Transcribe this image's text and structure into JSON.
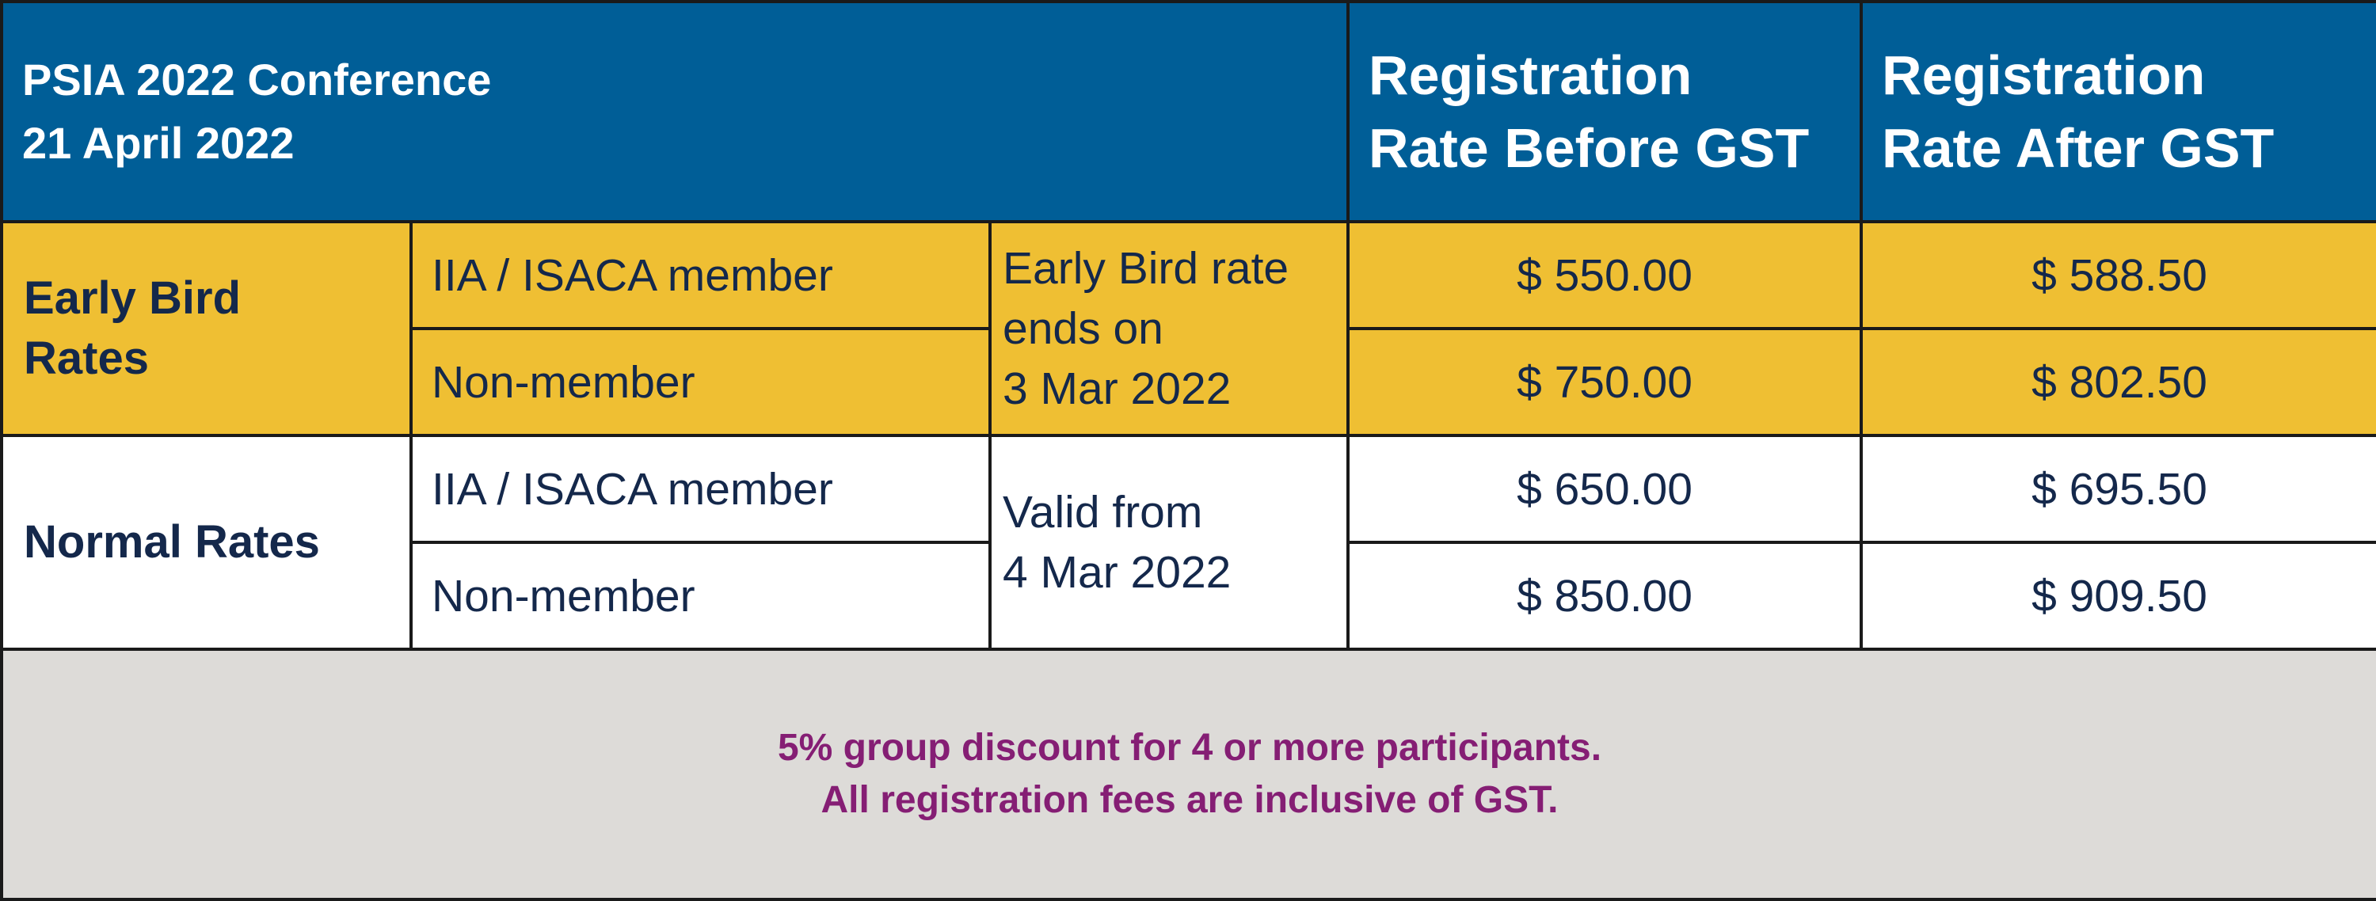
{
  "header": {
    "title_line1": "PSIA 2022 Conference",
    "title_line2": "21 April 2022",
    "before_gst_line1": "Registration",
    "before_gst_line2": "Rate Before GST",
    "after_gst_line1": "Registration",
    "after_gst_line2": "Rate After GST"
  },
  "early_bird": {
    "category_line1": "Early Bird",
    "category_line2": "Rates",
    "note_line1": "Early Bird rate",
    "note_line2": "ends on",
    "note_line3": "3 Mar 2022",
    "rows": [
      {
        "membership": "IIA / ISACA member",
        "before_gst": "$ 550.00",
        "after_gst": "$ 588.50"
      },
      {
        "membership": "Non-member",
        "before_gst": "$ 750.00",
        "after_gst": "$ 802.50"
      }
    ]
  },
  "normal": {
    "category": "Normal Rates",
    "note_line1": "Valid from",
    "note_line2": "4 Mar 2022",
    "rows": [
      {
        "membership": "IIA / ISACA member",
        "before_gst": "$ 650.00",
        "after_gst": "$ 695.50"
      },
      {
        "membership": "Non-member",
        "before_gst": "$ 850.00",
        "after_gst": "$ 909.50"
      }
    ]
  },
  "footer": {
    "line1": "5% group discount for 4 or more participants.",
    "line2": "All registration fees are inclusive of GST."
  },
  "colors": {
    "header_bg": "#005e97",
    "early_bird_bg": "#efbf33",
    "footer_bg": "#dddbd8",
    "text_navy": "#14284b",
    "footer_text": "#851e74"
  }
}
